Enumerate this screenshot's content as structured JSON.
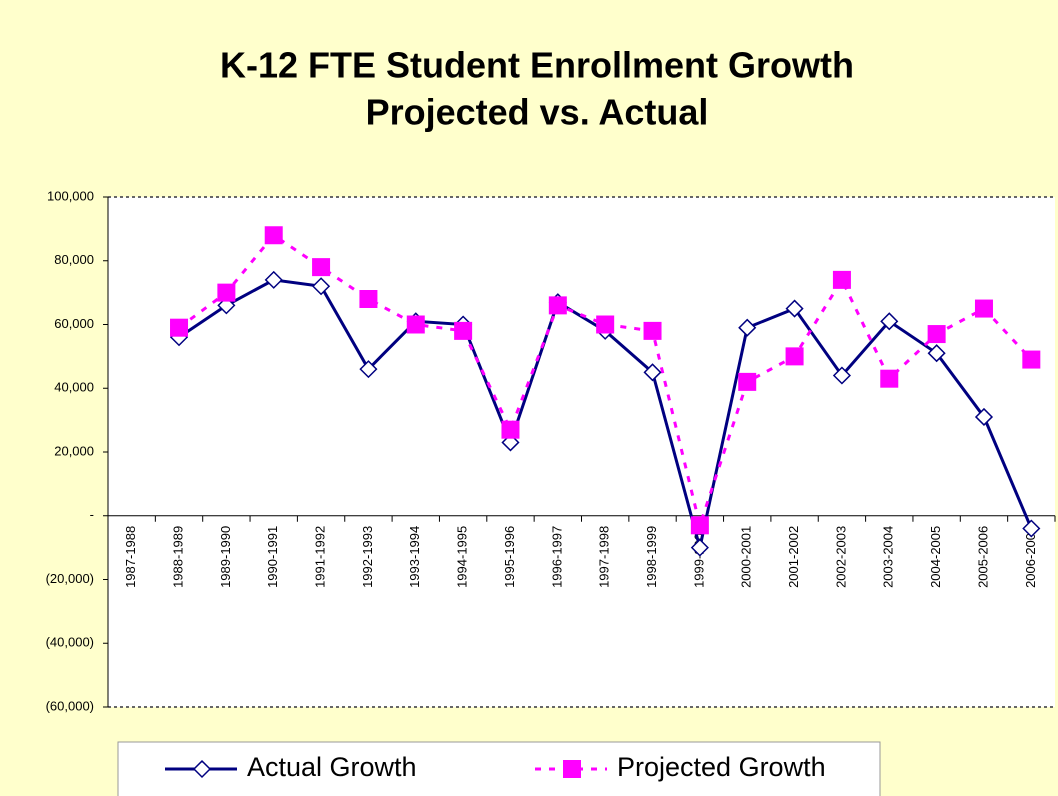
{
  "chart_data": {
    "type": "line",
    "title": "K-12 FTE Student Enrollment Growth",
    "subtitle": "Projected vs. Actual",
    "categories": [
      "1987-1988",
      "1988-1989",
      "1989-1990",
      "1990-1991",
      "1991-1992",
      "1992-1993",
      "1993-1994",
      "1994-1995",
      "1995-1996",
      "1996-1997",
      "1997-1998",
      "1998-1999",
      "1999-2000",
      "2000-2001",
      "2001-2002",
      "2002-2003",
      "2003-2004",
      "2004-2005",
      "2005-2006",
      "2006-2007"
    ],
    "series": [
      {
        "name": "Actual Growth",
        "color": "#000080",
        "marker": "diamond",
        "dash": false,
        "values": [
          null,
          56000,
          66000,
          74000,
          72000,
          46000,
          61000,
          60000,
          23000,
          67000,
          58000,
          45000,
          -10000,
          59000,
          65000,
          44000,
          61000,
          51000,
          31000,
          -4000
        ]
      },
      {
        "name": "Projected Growth",
        "color": "#ff00ff",
        "marker": "square",
        "dash": true,
        "values": [
          null,
          59000,
          70000,
          88000,
          78000,
          68000,
          60000,
          58000,
          27000,
          66000,
          60000,
          58000,
          -3000,
          42000,
          50000,
          74000,
          43000,
          57000,
          65000,
          49000
        ]
      }
    ],
    "ylim": [
      -60000,
      100000
    ],
    "yticks": [
      {
        "value": -60000,
        "label": "(60,000)"
      },
      {
        "value": -40000,
        "label": "(40,000)"
      },
      {
        "value": -20000,
        "label": "(20,000)"
      },
      {
        "value": 0,
        "label": "-"
      },
      {
        "value": 20000,
        "label": "20,000"
      },
      {
        "value": 40000,
        "label": "40,000"
      },
      {
        "value": 60000,
        "label": "60,000"
      },
      {
        "value": 80000,
        "label": "80,000"
      },
      {
        "value": 100000,
        "label": "100,000"
      }
    ],
    "legend": "bottom"
  }
}
